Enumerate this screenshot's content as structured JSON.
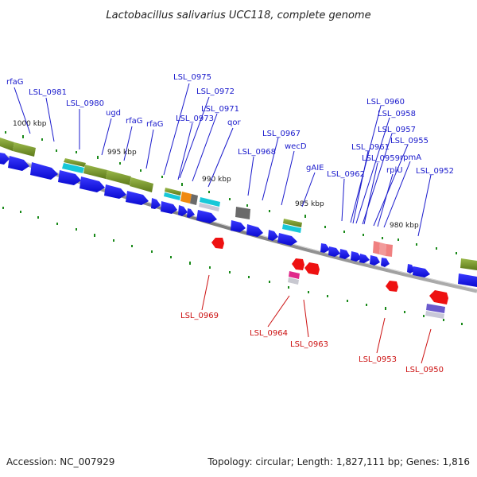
{
  "title": "Lactobacillus salivarius UCC118, complete genome",
  "footer": {
    "accession": "Accession: NC_007929",
    "topology": "Topology: circular; Length: 1,827,111 bp; Genes: 1,816"
  },
  "colors": {
    "background": "#ffffff",
    "backbone": "#8c8c8c",
    "forward_gene": "#1010e6",
    "reverse_gene": "#ee1111",
    "forward_label": "#1a1acc",
    "reverse_label": "#cc1111",
    "olive_feature": "#7a9a2a",
    "cyan_feature": "#18c8d8",
    "orange_feature": "#f08a10",
    "gray_feature": "#6a6a6a",
    "pink_feature": "#f08080",
    "magenta_feature": "#e0288a",
    "purple_feature": "#6a5acd",
    "tick_mark": "#1a8a1a"
  },
  "ticks": [
    "1000 kbp",
    "995 kbp",
    "990 kbp",
    "985 kbp",
    "980 kbp"
  ],
  "labels_forward": [
    "rfaG",
    "LSL_0981",
    "LSL_0980",
    "ugd",
    "rfaG",
    "rfaG",
    "LSL_0975",
    "LSL_0972",
    "LSL_0973",
    "LSL_0971",
    "qor",
    "LSL_0968",
    "LSL_0967",
    "wecD",
    "gAIE",
    "LSL_0962",
    "LSL_0960",
    "LSL_0958",
    "LSL_0957",
    "LSL_0961",
    "LSL_0955",
    "LSL_0959",
    "rpmA",
    "rplU",
    "LSL_0952"
  ],
  "labels_reverse": [
    "LSL_0969",
    "LSL_0964",
    "LSL_0963",
    "LSL_0953",
    "LSL_0950"
  ]
}
